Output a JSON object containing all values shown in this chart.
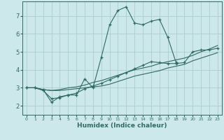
{
  "xlabel": "Humidex (Indice chaleur)",
  "background_color": "#cce8ea",
  "grid_color": "#aacdd0",
  "line_color": "#2e6b62",
  "xlim": [
    -0.5,
    23.5
  ],
  "ylim": [
    1.5,
    7.8
  ],
  "yticks": [
    2,
    3,
    4,
    5,
    6,
    7
  ],
  "xticks": [
    0,
    1,
    2,
    3,
    4,
    5,
    6,
    7,
    8,
    9,
    10,
    11,
    12,
    13,
    14,
    15,
    16,
    17,
    18,
    19,
    20,
    21,
    22,
    23
  ],
  "lines": [
    {
      "x": [
        0,
        1,
        2,
        3,
        4,
        5,
        6,
        7,
        8,
        9,
        10,
        11,
        12,
        13,
        14,
        15,
        16,
        17,
        18
      ],
      "y": [
        3.0,
        3.0,
        2.9,
        2.2,
        2.5,
        2.6,
        2.6,
        3.5,
        3.0,
        4.7,
        6.5,
        7.3,
        7.5,
        6.6,
        6.5,
        6.7,
        6.8,
        5.8,
        4.4
      ],
      "has_markers": true
    },
    {
      "x": [
        0,
        1,
        2,
        3,
        4,
        5,
        6,
        7,
        8,
        9,
        10,
        11,
        12,
        13,
        14,
        15,
        16,
        17,
        18,
        19,
        20,
        21,
        22,
        23
      ],
      "y": [
        3.0,
        3.0,
        2.9,
        2.85,
        2.9,
        3.0,
        3.05,
        3.15,
        3.3,
        3.4,
        3.55,
        3.7,
        3.85,
        4.0,
        4.1,
        4.2,
        4.35,
        4.45,
        4.55,
        4.65,
        4.8,
        5.0,
        5.15,
        5.35
      ],
      "has_markers": false
    },
    {
      "x": [
        0,
        1,
        2,
        3,
        4,
        5,
        6,
        7,
        8,
        9,
        10,
        11,
        12,
        13,
        14,
        15,
        16,
        17,
        18,
        19,
        20,
        21,
        22,
        23
      ],
      "y": [
        3.0,
        3.0,
        2.9,
        2.85,
        2.85,
        2.9,
        2.95,
        3.0,
        3.05,
        3.1,
        3.2,
        3.35,
        3.5,
        3.65,
        3.75,
        3.85,
        3.95,
        4.1,
        4.2,
        4.3,
        4.5,
        4.65,
        4.8,
        4.95
      ],
      "has_markers": false
    },
    {
      "x": [
        0,
        1,
        2,
        3,
        4,
        5,
        6,
        7,
        8,
        9,
        10,
        11,
        12,
        13,
        14,
        15,
        16,
        17,
        18,
        19,
        20,
        21,
        22,
        23
      ],
      "y": [
        3.0,
        3.0,
        2.85,
        2.4,
        2.45,
        2.6,
        2.7,
        2.95,
        3.1,
        3.25,
        3.45,
        3.65,
        3.85,
        4.05,
        4.25,
        4.45,
        4.4,
        4.35,
        4.35,
        4.4,
        5.0,
        5.1,
        5.1,
        5.2
      ],
      "has_markers": true
    }
  ]
}
